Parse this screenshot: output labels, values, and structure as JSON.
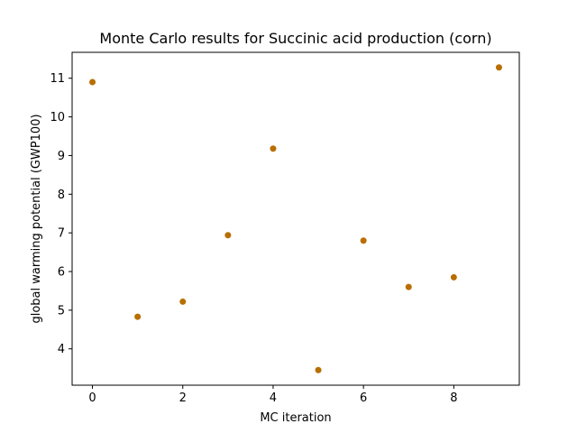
{
  "chart_data": {
    "type": "scatter",
    "title": "Monte Carlo results for Succinic acid production (corn)",
    "xlabel": "MC iteration",
    "ylabel": "global warming potential (GWP100)",
    "x": [
      0,
      1,
      2,
      3,
      4,
      5,
      6,
      7,
      8,
      9
    ],
    "y": [
      10.9,
      4.83,
      5.22,
      6.94,
      9.18,
      3.45,
      6.8,
      5.6,
      5.85,
      11.28
    ],
    "xlim": [
      -0.45,
      9.45
    ],
    "ylim": [
      3.06,
      11.67
    ],
    "xticks": [
      0,
      2,
      4,
      6,
      8
    ],
    "yticks": [
      4,
      5,
      6,
      7,
      8,
      9,
      10,
      11
    ],
    "marker_color": "#b86e00",
    "grid": false,
    "legend": "none"
  }
}
